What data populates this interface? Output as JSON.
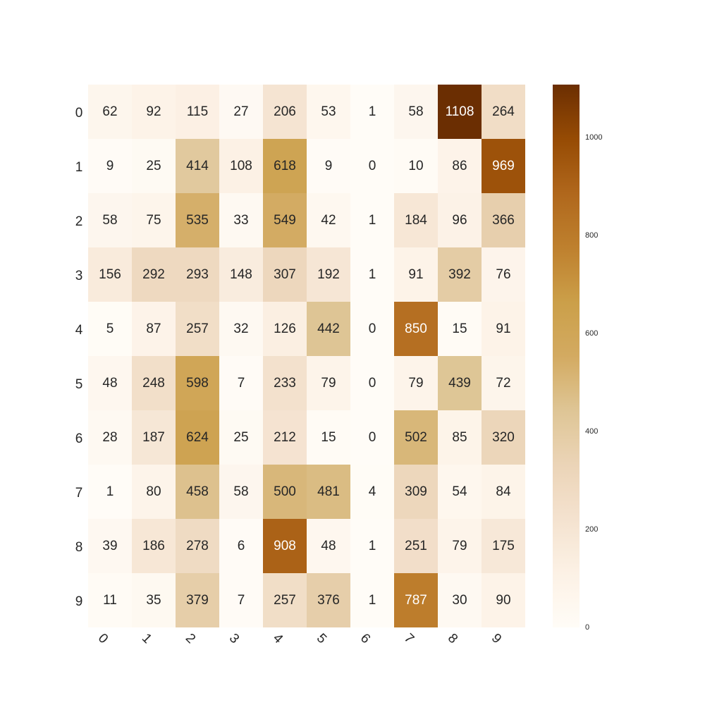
{
  "chart_data": {
    "type": "heatmap",
    "title": "",
    "xlabel": "",
    "ylabel": "",
    "x_categories": [
      "0",
      "1",
      "2",
      "3",
      "4",
      "5",
      "6",
      "7",
      "8",
      "9"
    ],
    "y_categories": [
      "0",
      "1",
      "2",
      "3",
      "4",
      "5",
      "6",
      "7",
      "8",
      "9"
    ],
    "values": [
      [
        62,
        92,
        115,
        27,
        206,
        53,
        1,
        58,
        1108,
        264
      ],
      [
        9,
        25,
        414,
        108,
        618,
        9,
        0,
        10,
        86,
        969
      ],
      [
        58,
        75,
        535,
        33,
        549,
        42,
        1,
        184,
        96,
        366
      ],
      [
        156,
        292,
        293,
        148,
        307,
        192,
        1,
        91,
        392,
        76
      ],
      [
        5,
        87,
        257,
        32,
        126,
        442,
        0,
        850,
        15,
        91
      ],
      [
        48,
        248,
        598,
        7,
        233,
        79,
        0,
        79,
        439,
        72
      ],
      [
        28,
        187,
        624,
        25,
        212,
        15,
        0,
        502,
        85,
        320
      ],
      [
        1,
        80,
        458,
        58,
        500,
        481,
        4,
        309,
        54,
        84
      ],
      [
        39,
        186,
        278,
        6,
        908,
        48,
        1,
        251,
        79,
        175
      ],
      [
        11,
        35,
        379,
        7,
        257,
        376,
        1,
        787,
        30,
        90
      ]
    ],
    "annotated": true,
    "grid": false,
    "colormap": "cream-to-brown",
    "color_range": [
      0,
      1108
    ],
    "colorbar": {
      "position": "right",
      "ticks": [
        0,
        200,
        400,
        600,
        800,
        1000
      ]
    },
    "colors": {
      "low": "#fffcf7",
      "mid": "#dfc595",
      "high": "#6b2e02",
      "text_dark": "#262626",
      "text_light": "#ffffff"
    }
  }
}
